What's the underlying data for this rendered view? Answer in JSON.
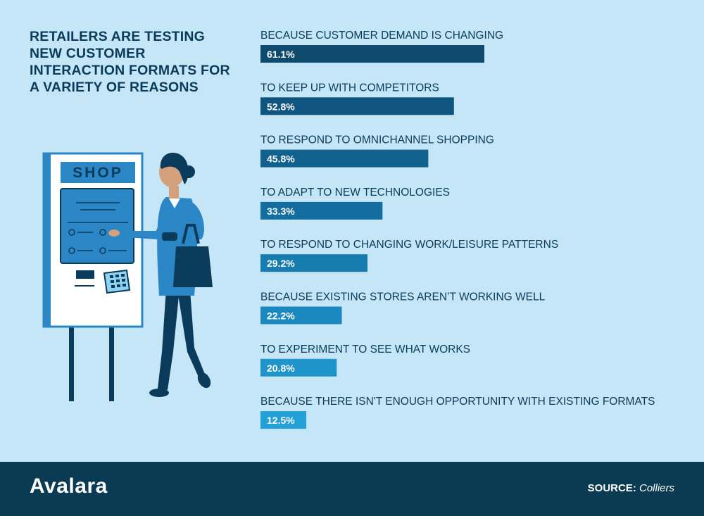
{
  "title": "RETAILERS ARE TESTING NEW CUSTOMER INTERACTION FORMATS FOR A VARIETY OF REASONS",
  "illustration": {
    "kiosk_sign": "SHOP"
  },
  "chart_data": {
    "type": "bar",
    "orientation": "horizontal",
    "categories": [
      "BECAUSE CUSTOMER DEMAND IS CHANGING",
      "TO KEEP UP WITH COMPETITORS",
      "TO RESPOND TO OMNICHANNEL SHOPPING",
      "TO ADAPT TO NEW TECHNOLOGIES",
      "TO RESPOND TO CHANGING WORK/LEISURE PATTERNS",
      "BECAUSE EXISTING STORES AREN’T WORKING WELL",
      "TO EXPERIMENT TO SEE WHAT WORKS",
      "BECAUSE THERE ISN'T ENOUGH OPPORTUNITY WITH EXISTING FORMATS"
    ],
    "values": [
      61.1,
      52.8,
      45.8,
      33.3,
      29.2,
      22.2,
      20.8,
      12.5
    ],
    "value_labels": [
      "61.1%",
      "52.8%",
      "45.8%",
      "33.3%",
      "29.2%",
      "22.2%",
      "20.8%",
      "12.5%"
    ],
    "bar_colors": [
      "#0d4a6e",
      "#0f5580",
      "#11618f",
      "#136e9f",
      "#177caf",
      "#1b88bf",
      "#1f94cb",
      "#24a0d8"
    ],
    "xlim": [
      0,
      100
    ],
    "grid": false,
    "legend": "none"
  },
  "footer": {
    "logo_text": "Avalara",
    "source_label": "SOURCE:",
    "source_value": "Colliers"
  }
}
